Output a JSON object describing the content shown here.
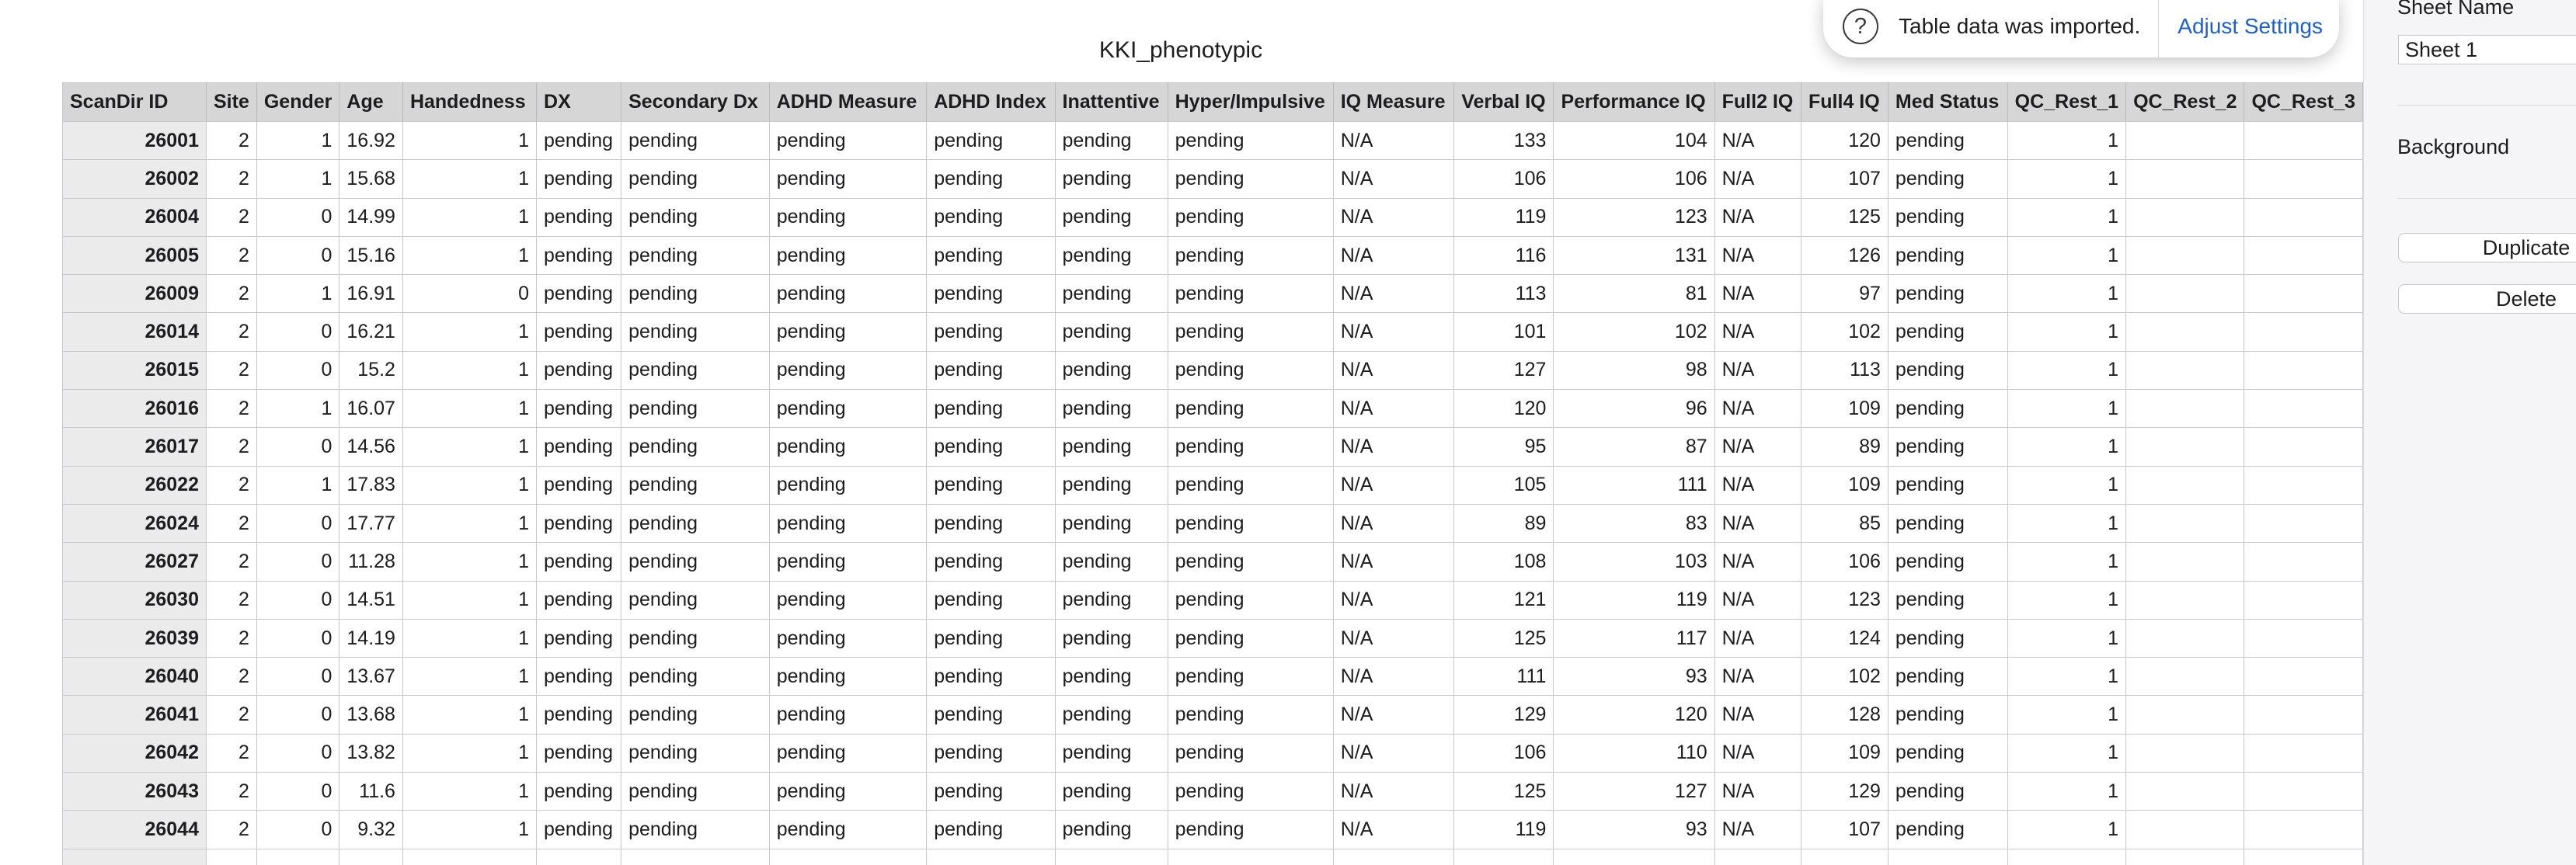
{
  "sheet": {
    "title": "KKI_phenotypic"
  },
  "table": {
    "columns": [
      {
        "label": "ScanDir ID",
        "align": "right",
        "rowhead": true
      },
      {
        "label": "Site",
        "align": "right"
      },
      {
        "label": "Gender",
        "align": "right"
      },
      {
        "label": "Age",
        "align": "right"
      },
      {
        "label": "Handedness",
        "align": "right"
      },
      {
        "label": "DX",
        "align": "left"
      },
      {
        "label": "Secondary Dx",
        "align": "left"
      },
      {
        "label": "ADHD Measure",
        "align": "left"
      },
      {
        "label": "ADHD Index",
        "align": "left"
      },
      {
        "label": "Inattentive",
        "align": "left"
      },
      {
        "label": "Hyper/Impulsive",
        "align": "left"
      },
      {
        "label": "IQ Measure",
        "align": "left"
      },
      {
        "label": "Verbal IQ",
        "align": "right"
      },
      {
        "label": "Performance IQ",
        "align": "right"
      },
      {
        "label": "Full2 IQ",
        "align": "left"
      },
      {
        "label": "Full4 IQ",
        "align": "right"
      },
      {
        "label": "Med Status",
        "align": "left"
      },
      {
        "label": "QC_Rest_1",
        "align": "right"
      },
      {
        "label": "QC_Rest_2",
        "align": "right"
      },
      {
        "label": "QC_Rest_3",
        "align": "right"
      }
    ],
    "rows": [
      [
        "26001",
        "2",
        "1",
        "16.92",
        "1",
        "pending",
        "pending",
        "pending",
        "pending",
        "pending",
        "pending",
        "N/A",
        "133",
        "104",
        "N/A",
        "120",
        "pending",
        "1",
        "",
        ""
      ],
      [
        "26002",
        "2",
        "1",
        "15.68",
        "1",
        "pending",
        "pending",
        "pending",
        "pending",
        "pending",
        "pending",
        "N/A",
        "106",
        "106",
        "N/A",
        "107",
        "pending",
        "1",
        "",
        ""
      ],
      [
        "26004",
        "2",
        "0",
        "14.99",
        "1",
        "pending",
        "pending",
        "pending",
        "pending",
        "pending",
        "pending",
        "N/A",
        "119",
        "123",
        "N/A",
        "125",
        "pending",
        "1",
        "",
        ""
      ],
      [
        "26005",
        "2",
        "0",
        "15.16",
        "1",
        "pending",
        "pending",
        "pending",
        "pending",
        "pending",
        "pending",
        "N/A",
        "116",
        "131",
        "N/A",
        "126",
        "pending",
        "1",
        "",
        ""
      ],
      [
        "26009",
        "2",
        "1",
        "16.91",
        "0",
        "pending",
        "pending",
        "pending",
        "pending",
        "pending",
        "pending",
        "N/A",
        "113",
        "81",
        "N/A",
        "97",
        "pending",
        "1",
        "",
        ""
      ],
      [
        "26014",
        "2",
        "0",
        "16.21",
        "1",
        "pending",
        "pending",
        "pending",
        "pending",
        "pending",
        "pending",
        "N/A",
        "101",
        "102",
        "N/A",
        "102",
        "pending",
        "1",
        "",
        ""
      ],
      [
        "26015",
        "2",
        "0",
        "15.2",
        "1",
        "pending",
        "pending",
        "pending",
        "pending",
        "pending",
        "pending",
        "N/A",
        "127",
        "98",
        "N/A",
        "113",
        "pending",
        "1",
        "",
        ""
      ],
      [
        "26016",
        "2",
        "1",
        "16.07",
        "1",
        "pending",
        "pending",
        "pending",
        "pending",
        "pending",
        "pending",
        "N/A",
        "120",
        "96",
        "N/A",
        "109",
        "pending",
        "1",
        "",
        ""
      ],
      [
        "26017",
        "2",
        "0",
        "14.56",
        "1",
        "pending",
        "pending",
        "pending",
        "pending",
        "pending",
        "pending",
        "N/A",
        "95",
        "87",
        "N/A",
        "89",
        "pending",
        "1",
        "",
        ""
      ],
      [
        "26022",
        "2",
        "1",
        "17.83",
        "1",
        "pending",
        "pending",
        "pending",
        "pending",
        "pending",
        "pending",
        "N/A",
        "105",
        "111",
        "N/A",
        "109",
        "pending",
        "1",
        "",
        ""
      ],
      [
        "26024",
        "2",
        "0",
        "17.77",
        "1",
        "pending",
        "pending",
        "pending",
        "pending",
        "pending",
        "pending",
        "N/A",
        "89",
        "83",
        "N/A",
        "85",
        "pending",
        "1",
        "",
        ""
      ],
      [
        "26027",
        "2",
        "0",
        "11.28",
        "1",
        "pending",
        "pending",
        "pending",
        "pending",
        "pending",
        "pending",
        "N/A",
        "108",
        "103",
        "N/A",
        "106",
        "pending",
        "1",
        "",
        ""
      ],
      [
        "26030",
        "2",
        "0",
        "14.51",
        "1",
        "pending",
        "pending",
        "pending",
        "pending",
        "pending",
        "pending",
        "N/A",
        "121",
        "119",
        "N/A",
        "123",
        "pending",
        "1",
        "",
        ""
      ],
      [
        "26039",
        "2",
        "0",
        "14.19",
        "1",
        "pending",
        "pending",
        "pending",
        "pending",
        "pending",
        "pending",
        "N/A",
        "125",
        "117",
        "N/A",
        "124",
        "pending",
        "1",
        "",
        ""
      ],
      [
        "26040",
        "2",
        "0",
        "13.67",
        "1",
        "pending",
        "pending",
        "pending",
        "pending",
        "pending",
        "pending",
        "N/A",
        "111",
        "93",
        "N/A",
        "102",
        "pending",
        "1",
        "",
        ""
      ],
      [
        "26041",
        "2",
        "0",
        "13.68",
        "1",
        "pending",
        "pending",
        "pending",
        "pending",
        "pending",
        "pending",
        "N/A",
        "129",
        "120",
        "N/A",
        "128",
        "pending",
        "1",
        "",
        ""
      ],
      [
        "26042",
        "2",
        "0",
        "13.82",
        "1",
        "pending",
        "pending",
        "pending",
        "pending",
        "pending",
        "pending",
        "N/A",
        "106",
        "110",
        "N/A",
        "109",
        "pending",
        "1",
        "",
        ""
      ],
      [
        "26043",
        "2",
        "0",
        "11.6",
        "1",
        "pending",
        "pending",
        "pending",
        "pending",
        "pending",
        "pending",
        "N/A",
        "125",
        "127",
        "N/A",
        "129",
        "pending",
        "1",
        "",
        ""
      ],
      [
        "26044",
        "2",
        "0",
        "9.32",
        "1",
        "pending",
        "pending",
        "pending",
        "pending",
        "pending",
        "pending",
        "N/A",
        "119",
        "93",
        "N/A",
        "107",
        "pending",
        "1",
        "",
        ""
      ],
      [
        "",
        "",
        "",
        "",
        "",
        "",
        "",
        "",
        "",
        "",
        "",
        "",
        "",
        "",
        "",
        "",
        "",
        "",
        "",
        ""
      ]
    ]
  },
  "notification": {
    "icon": "question-circle-icon",
    "icon_glyph": "?",
    "message": "Table data was imported.",
    "action": "Adjust Settings"
  },
  "inspector": {
    "sheet_name_label": "Sheet Name",
    "sheet_name_value": "Sheet 1",
    "background_label": "Background",
    "duplicate_label": "Duplicate",
    "delete_label": "Delete"
  }
}
